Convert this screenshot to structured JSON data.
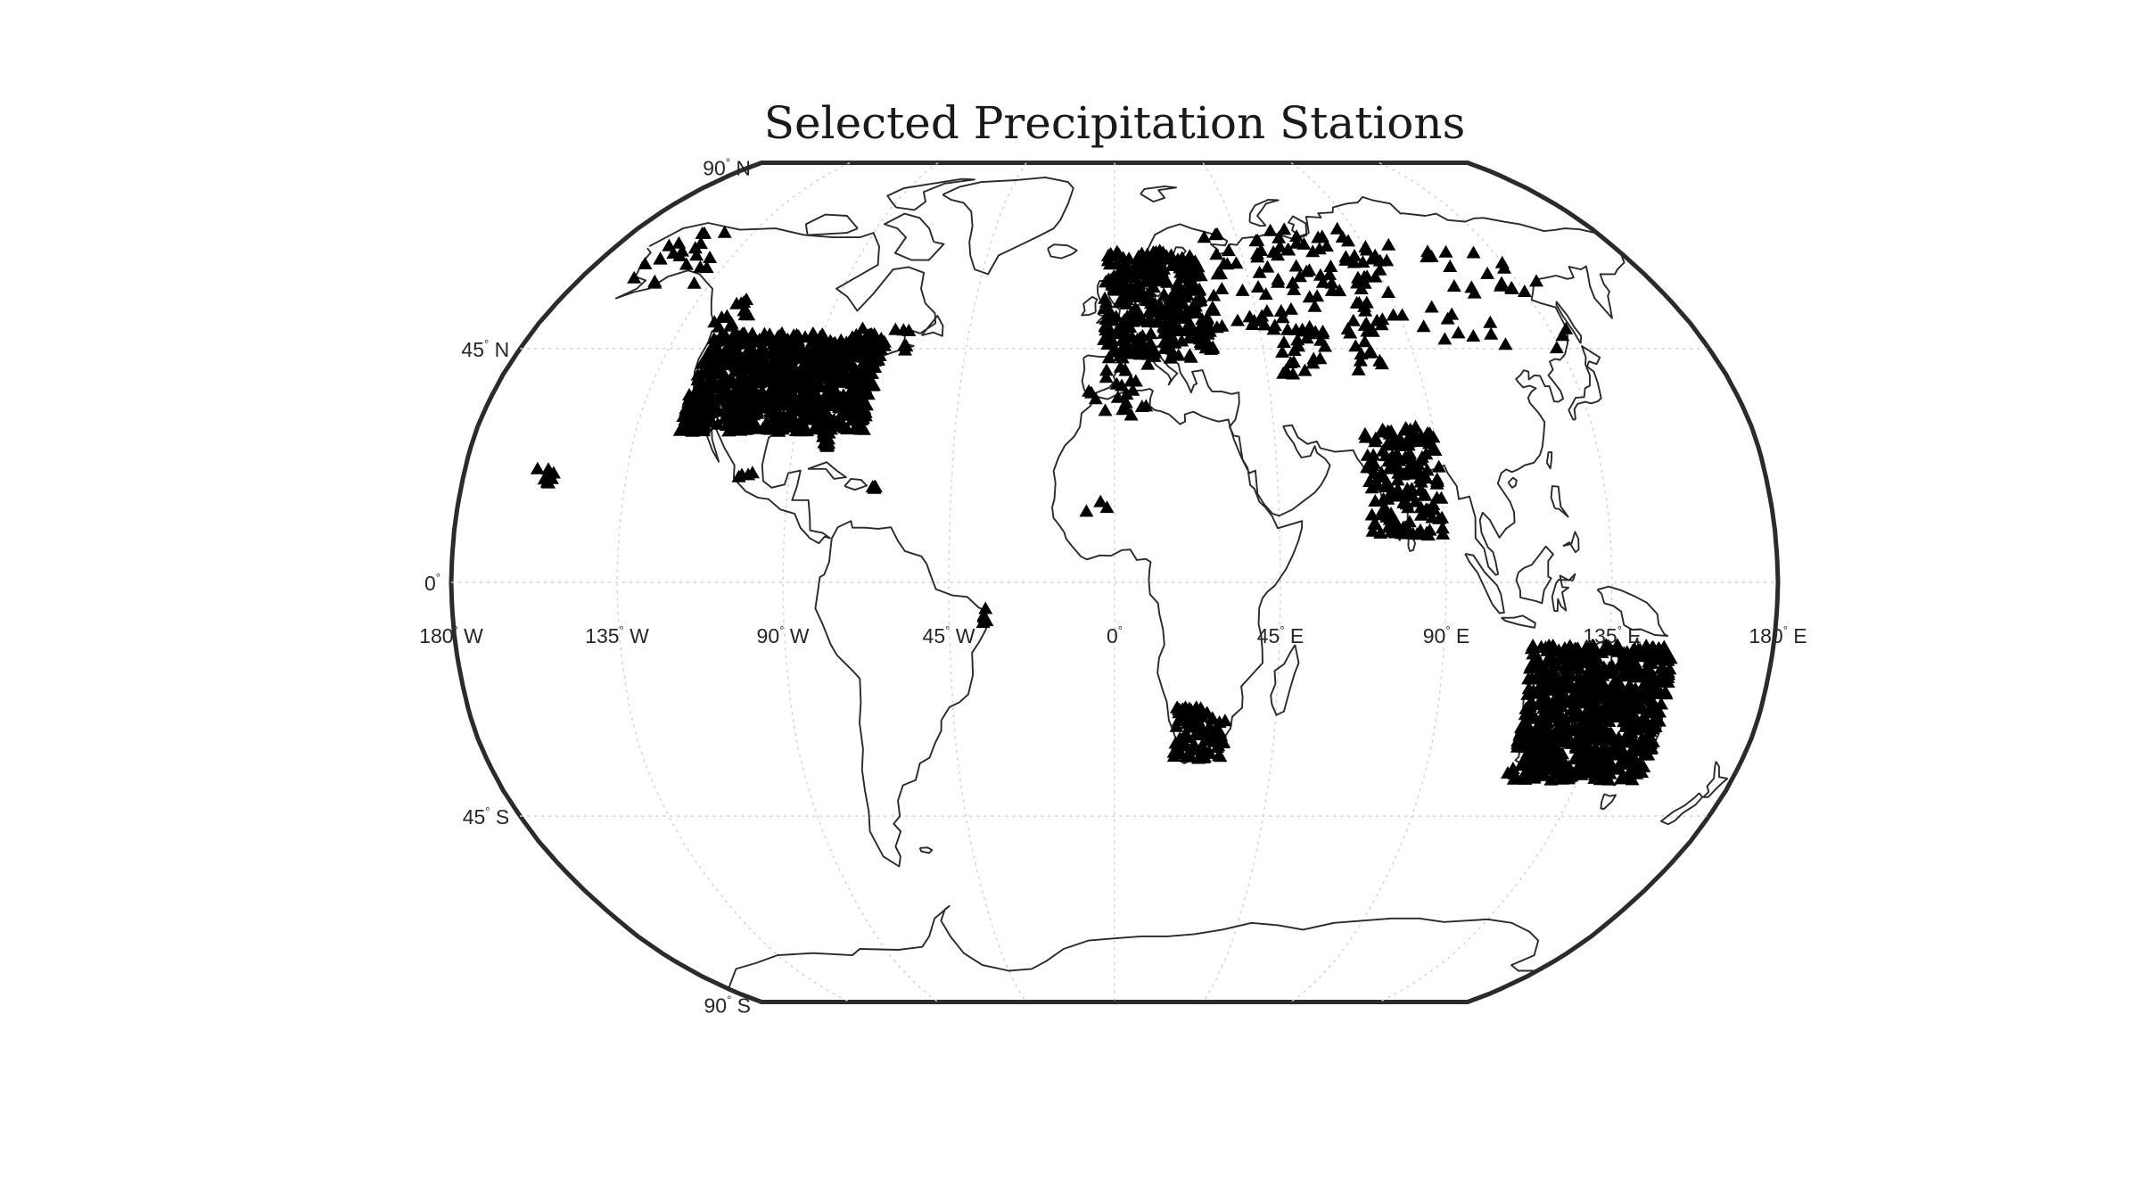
{
  "map": {
    "title": "Selected Precipitation Stations",
    "projection": "Robinson",
    "latitude_labels": [
      {
        "lat": 90,
        "text": "90",
        "hemi": "N"
      },
      {
        "lat": 45,
        "text": "45",
        "hemi": "N"
      },
      {
        "lat": 0,
        "text": "0",
        "hemi": ""
      },
      {
        "lat": -45,
        "text": "45",
        "hemi": "S"
      },
      {
        "lat": -90,
        "text": "90",
        "hemi": "S"
      }
    ],
    "longitude_labels": [
      {
        "lon": -180,
        "text": "180",
        "hemi": "W"
      },
      {
        "lon": -135,
        "text": "135",
        "hemi": "W"
      },
      {
        "lon": -90,
        "text": "90",
        "hemi": "W"
      },
      {
        "lon": -45,
        "text": "45",
        "hemi": "W"
      },
      {
        "lon": 0,
        "text": "0",
        "hemi": ""
      },
      {
        "lon": 45,
        "text": "45",
        "hemi": "E"
      },
      {
        "lon": 90,
        "text": "90",
        "hemi": "E"
      },
      {
        "lon": 135,
        "text": "135",
        "hemi": "E"
      },
      {
        "lon": 180,
        "text": "180",
        "hemi": "E"
      }
    ],
    "degree_symbol": "°",
    "marker": "filled-triangle",
    "marker_color": "#000000",
    "station_regions": [
      {
        "name": "United States",
        "lat_range": [
          29,
          48
        ],
        "lon_range": [
          -123,
          -70
        ],
        "count": 900
      },
      {
        "name": "Florida",
        "lat_range": [
          26,
          30
        ],
        "lon_range": [
          -82,
          -80
        ],
        "count": 20
      },
      {
        "name": "Alaska",
        "lat_range": [
          58,
          70
        ],
        "lon_range": [
          -165,
          -140
        ],
        "count": 22
      },
      {
        "name": "Western Canada",
        "lat_range": [
          49,
          56
        ],
        "lon_range": [
          -126,
          -114
        ],
        "count": 15
      },
      {
        "name": "Eastern Canada",
        "lat_range": [
          44,
          49
        ],
        "lon_range": [
          -80,
          -62
        ],
        "count": 18
      },
      {
        "name": "Hawaii",
        "lat_range": [
          19,
          22
        ],
        "lon_range": [
          -160,
          -155
        ],
        "count": 8
      },
      {
        "name": "Mexico",
        "lat_range": [
          19,
          22
        ],
        "lon_range": [
          -104,
          -100
        ],
        "count": 4
      },
      {
        "name": "Puerto Rico",
        "lat_range": [
          18,
          18.5
        ],
        "lon_range": [
          -67,
          -65.5
        ],
        "count": 4
      },
      {
        "name": "NE Brazil",
        "lat_range": [
          -8,
          -5
        ],
        "lon_range": [
          -36,
          -34.5
        ],
        "count": 5
      },
      {
        "name": "Europe",
        "lat_range": [
          43,
          65
        ],
        "lon_range": [
          -4,
          30
        ],
        "count": 320
      },
      {
        "name": "Iberia and North Africa",
        "lat_range": [
          32,
          42
        ],
        "lon_range": [
          -8,
          10
        ],
        "count": 22
      },
      {
        "name": "Russia",
        "lat_range": [
          48,
          70
        ],
        "lon_range": [
          30,
          100
        ],
        "count": 110
      },
      {
        "name": "Central Asia",
        "lat_range": [
          40,
          50
        ],
        "lon_range": [
          45,
          80
        ],
        "count": 40
      },
      {
        "name": "East Asia",
        "lat_range": [
          45,
          65
        ],
        "lon_range": [
          100,
          142
        ],
        "count": 30
      },
      {
        "name": "India",
        "lat_range": [
          9,
          30
        ],
        "lon_range": [
          70,
          90
        ],
        "count": 170
      },
      {
        "name": "West Africa",
        "lat_range": [
          12,
          16
        ],
        "lon_range": [
          -17,
          7
        ],
        "count": 3
      },
      {
        "name": "South Africa",
        "lat_range": [
          -34,
          -24
        ],
        "lon_range": [
          17,
          31
        ],
        "count": 90
      },
      {
        "name": "Australia",
        "lat_range": [
          -38,
          -12
        ],
        "lon_range": [
          114,
          153
        ],
        "count": 800
      }
    ]
  }
}
